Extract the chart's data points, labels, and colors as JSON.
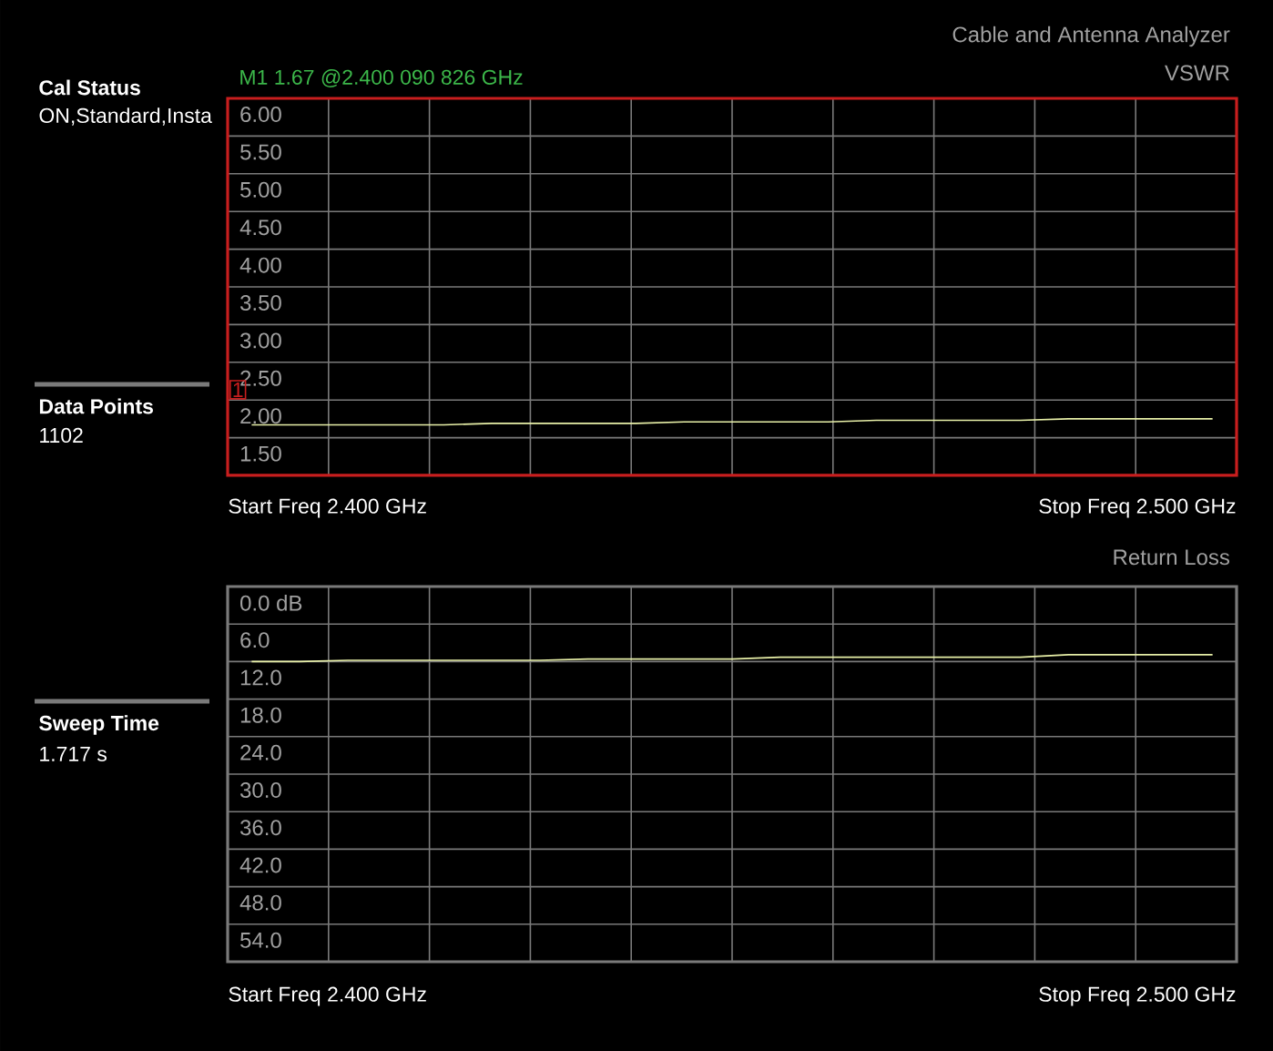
{
  "chart_data": [
    {
      "type": "line",
      "title": "Cable and Antenna Analyzer",
      "subtitle": "VSWR",
      "categories": [
        null,
        null,
        null,
        null,
        null,
        null,
        null,
        null,
        null,
        null,
        null,
        null,
        null,
        null,
        null,
        null,
        null,
        null,
        null,
        null,
        null
      ],
      "ylim": [
        1.0,
        6.0
      ],
      "yticks": [
        {
          "value": 1.0,
          "label": null
        },
        {
          "value": 1.5,
          "label": "1.50"
        },
        {
          "value": 2.0,
          "label": "2.00"
        },
        {
          "value": 2.5,
          "label": "2.50"
        },
        {
          "value": 3.0,
          "label": "3.00"
        },
        {
          "value": 3.5,
          "label": "3.50"
        },
        {
          "value": 4.0,
          "label": "4.00"
        },
        {
          "value": 4.5,
          "label": "4.50"
        },
        {
          "value": 5.0,
          "label": "5.00"
        },
        {
          "value": 5.5,
          "label": "5.50"
        },
        {
          "value": 6.0,
          "label": "6.00"
        }
      ],
      "grid": true,
      "series": [
        {
          "color": "#e8f0a8",
          "values": [
            1.67,
            1.67,
            1.67,
            1.67,
            1.67,
            1.69,
            1.69,
            1.69,
            1.69,
            1.71,
            1.71,
            1.71,
            1.71,
            1.73,
            1.73,
            1.73,
            1.73,
            1.75,
            1.75,
            1.75,
            1.75
          ]
        }
      ],
      "annotations": [
        "M1 1.67 @2.400 090 826 GHz",
        "Cal Status",
        "ON,Standard,Insta",
        "Data Points",
        "1102",
        "1",
        "Start Freq 2.400 GHz",
        "Stop Freq 2.500 GHz"
      ]
    },
    {
      "type": "line",
      "title": "Return Loss",
      "categories": [
        null,
        null,
        null,
        null,
        null,
        null,
        null,
        null,
        null,
        null,
        null,
        null,
        null,
        null,
        null,
        null,
        null,
        null,
        null,
        null,
        null
      ],
      "ylim": [
        60,
        0
      ],
      "yticks": [
        {
          "value": 0,
          "label": "0.0 dB"
        },
        {
          "value": 6,
          "label": "6.0"
        },
        {
          "value": 12,
          "label": "12.0"
        },
        {
          "value": 18,
          "label": "18.0"
        },
        {
          "value": 24,
          "label": "24.0"
        },
        {
          "value": 30,
          "label": "30.0"
        },
        {
          "value": 36,
          "label": "36.0"
        },
        {
          "value": 42,
          "label": "42.0"
        },
        {
          "value": 48,
          "label": "48.0"
        },
        {
          "value": 54,
          "label": "54.0"
        },
        {
          "value": 60,
          "label": null
        }
      ],
      "grid": true,
      "series": [
        {
          "color": "#e8f0a8",
          "values": [
            12.0,
            12.0,
            11.8,
            11.8,
            11.8,
            11.8,
            11.8,
            11.6,
            11.6,
            11.6,
            11.6,
            11.3,
            11.3,
            11.3,
            11.3,
            11.3,
            11.3,
            10.9,
            10.9,
            10.9,
            10.9
          ]
        }
      ],
      "annotations": [
        "Sweep Time",
        "1.717 s",
        "Start Freq 2.400 GHz",
        "Stop Freq 2.500 GHz"
      ]
    }
  ]
}
